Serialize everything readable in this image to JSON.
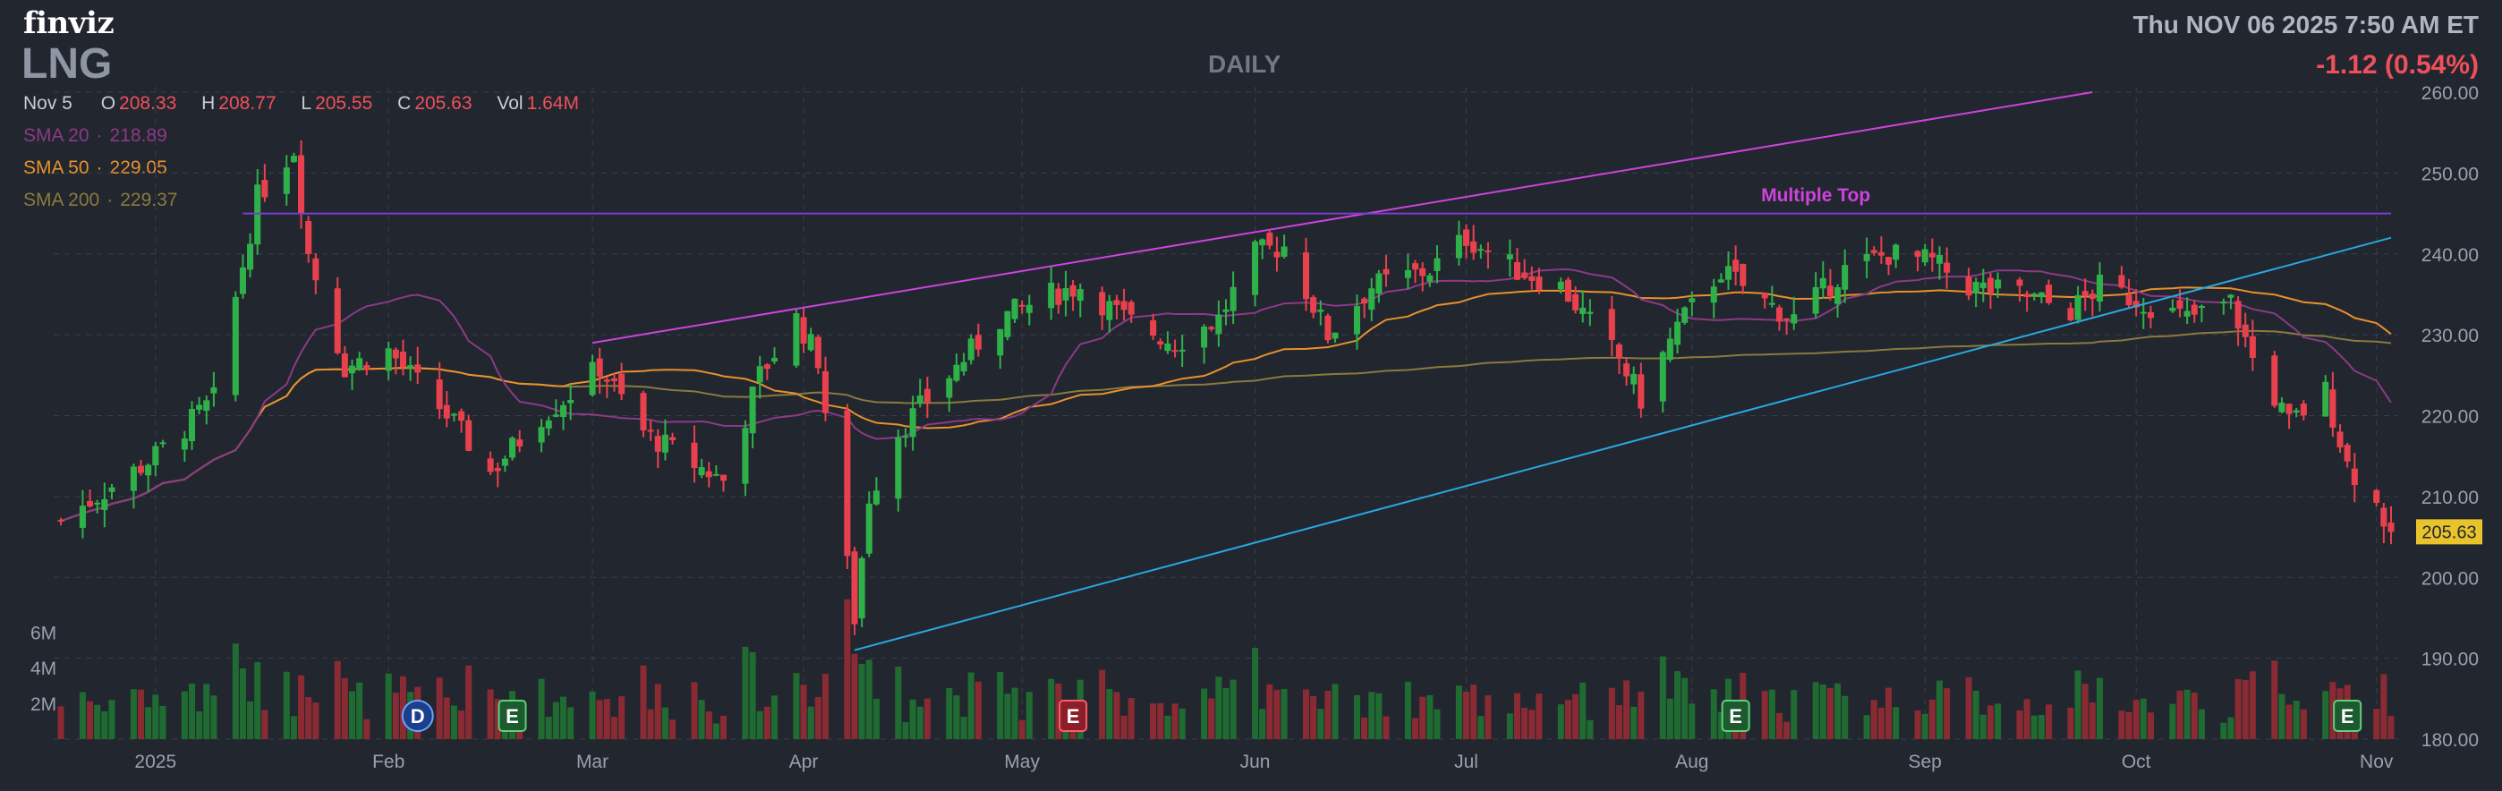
{
  "header": {
    "logo": "finviz",
    "ticker": "LNG",
    "period": "DAILY",
    "datetime": "Thu NOV 06 2025 7:50 AM ET",
    "change": "-1.12 (0.54%)"
  },
  "ohlc": {
    "date": "Nov 5",
    "open_label": "O",
    "open": "208.33",
    "high_label": "H",
    "high": "208.77",
    "low_label": "L",
    "low": "205.55",
    "close_label": "C",
    "close": "205.63",
    "vol_label": "Vol",
    "vol": "1.64M"
  },
  "sma": [
    {
      "label": "SMA 20",
      "value": "218.89",
      "color": "#8b3a86"
    },
    {
      "label": "SMA 50",
      "value": "229.05",
      "color": "#e8912e"
    },
    {
      "label": "SMA 200",
      "value": "229.37",
      "color": "#8a7a3e"
    }
  ],
  "colors": {
    "up": "#2fb14a",
    "down": "#e8414e",
    "vol_up": "#1f6b32",
    "vol_down": "#8a2a33",
    "grid": "#3a3f4a",
    "axis_text": "#9aa0ab",
    "channel": "#cc44dd",
    "support": "#2aa7e0",
    "resistance": "#7a3fd0",
    "last_price_bg": "#e8c32c"
  },
  "chart_data": {
    "type": "candlestick",
    "ylim": [
      180,
      260
    ],
    "y_ticks": [
      "180.00",
      "190.00",
      "200.00",
      "210.00",
      "220.00",
      "230.00",
      "240.00",
      "250.00",
      "260.00"
    ],
    "volume_ticks": [
      "2M",
      "4M",
      "6M"
    ],
    "x_tick_labels": [
      {
        "label": "2025",
        "date": "2025-01-02"
      },
      {
        "label": "Feb",
        "date": "2025-02-03"
      },
      {
        "label": "Mar",
        "date": "2025-03-03"
      },
      {
        "label": "Apr",
        "date": "2025-04-01"
      },
      {
        "label": "May",
        "date": "2025-05-01"
      },
      {
        "label": "Jun",
        "date": "2025-06-02"
      },
      {
        "label": "Jul",
        "date": "2025-07-01"
      },
      {
        "label": "Aug",
        "date": "2025-08-01"
      },
      {
        "label": "Sep",
        "date": "2025-09-02"
      },
      {
        "label": "Oct",
        "date": "2025-10-01"
      },
      {
        "label": "Nov",
        "date": "2025-11-03"
      }
    ],
    "date_range": [
      "2024-12-20",
      "2025-11-05"
    ],
    "close_anchors": [
      [
        "2024-12-20",
        207
      ],
      [
        "2025-01-02",
        215
      ],
      [
        "2025-01-10",
        222
      ],
      [
        "2025-01-16",
        247
      ],
      [
        "2025-01-21",
        253
      ],
      [
        "2025-01-23",
        240
      ],
      [
        "2025-01-28",
        226
      ],
      [
        "2025-02-03",
        228
      ],
      [
        "2025-02-07",
        224
      ],
      [
        "2025-02-12",
        219
      ],
      [
        "2025-02-17",
        213
      ],
      [
        "2025-02-24",
        220
      ],
      [
        "2025-02-27",
        222
      ],
      [
        "2025-03-04",
        226
      ],
      [
        "2025-03-10",
        218
      ],
      [
        "2025-03-17",
        214
      ],
      [
        "2025-03-21",
        212
      ],
      [
        "2025-03-26",
        225
      ],
      [
        "2025-03-31",
        232
      ],
      [
        "2025-04-03",
        227
      ],
      [
        "2025-04-08",
        195
      ],
      [
        "2025-04-10",
        210
      ],
      [
        "2025-04-14",
        218
      ],
      [
        "2025-04-21",
        225
      ],
      [
        "2025-04-28",
        232
      ],
      [
        "2025-05-05",
        235
      ],
      [
        "2025-05-09",
        236
      ],
      [
        "2025-05-15",
        232
      ],
      [
        "2025-05-22",
        229
      ],
      [
        "2025-05-28",
        232
      ],
      [
        "2025-06-02",
        240
      ],
      [
        "2025-06-06",
        241
      ],
      [
        "2025-06-12",
        230
      ],
      [
        "2025-06-18",
        236
      ],
      [
        "2025-06-26",
        238
      ],
      [
        "2025-07-01",
        242
      ],
      [
        "2025-07-08",
        238
      ],
      [
        "2025-07-14",
        236
      ],
      [
        "2025-07-22",
        227
      ],
      [
        "2025-07-25",
        222
      ],
      [
        "2025-07-30",
        231
      ],
      [
        "2025-08-05",
        238
      ],
      [
        "2025-08-11",
        234
      ],
      [
        "2025-08-15",
        232
      ],
      [
        "2025-08-22",
        238
      ],
      [
        "2025-08-28",
        240
      ],
      [
        "2025-09-03",
        239
      ],
      [
        "2025-09-08",
        236
      ],
      [
        "2025-09-15",
        235
      ],
      [
        "2025-09-22",
        233
      ],
      [
        "2025-09-26",
        236
      ],
      [
        "2025-10-02",
        234
      ],
      [
        "2025-10-08",
        232
      ],
      [
        "2025-10-14",
        234
      ],
      [
        "2025-10-17",
        227
      ],
      [
        "2025-10-22",
        219
      ],
      [
        "2025-10-27",
        223
      ],
      [
        "2025-10-30",
        214
      ],
      [
        "2025-11-03",
        209
      ],
      [
        "2025-11-05",
        205.63
      ]
    ],
    "last_price": "205.63",
    "trendlines": [
      {
        "name": "channel-top",
        "from": [
          "2025-03-03",
          229
        ],
        "to": [
          "2025-09-25",
          260
        ]
      },
      {
        "name": "support",
        "from": [
          "2025-04-08",
          191
        ],
        "to": [
          "2025-11-05",
          242
        ]
      },
      {
        "name": "resistance",
        "from": [
          "2025-01-14",
          245
        ],
        "to": [
          "2025-11-05",
          245
        ]
      }
    ],
    "pattern_label": {
      "text": "Multiple Top",
      "date": "2025-08-18",
      "value": 246.5
    },
    "events": [
      {
        "type": "D",
        "date": "2025-02-07"
      },
      {
        "type": "E",
        "date": "2025-02-20"
      },
      {
        "type": "E",
        "date": "2025-05-08"
      },
      {
        "type": "E",
        "date": "2025-08-07"
      },
      {
        "type": "E",
        "date": "2025-10-30"
      }
    ]
  }
}
